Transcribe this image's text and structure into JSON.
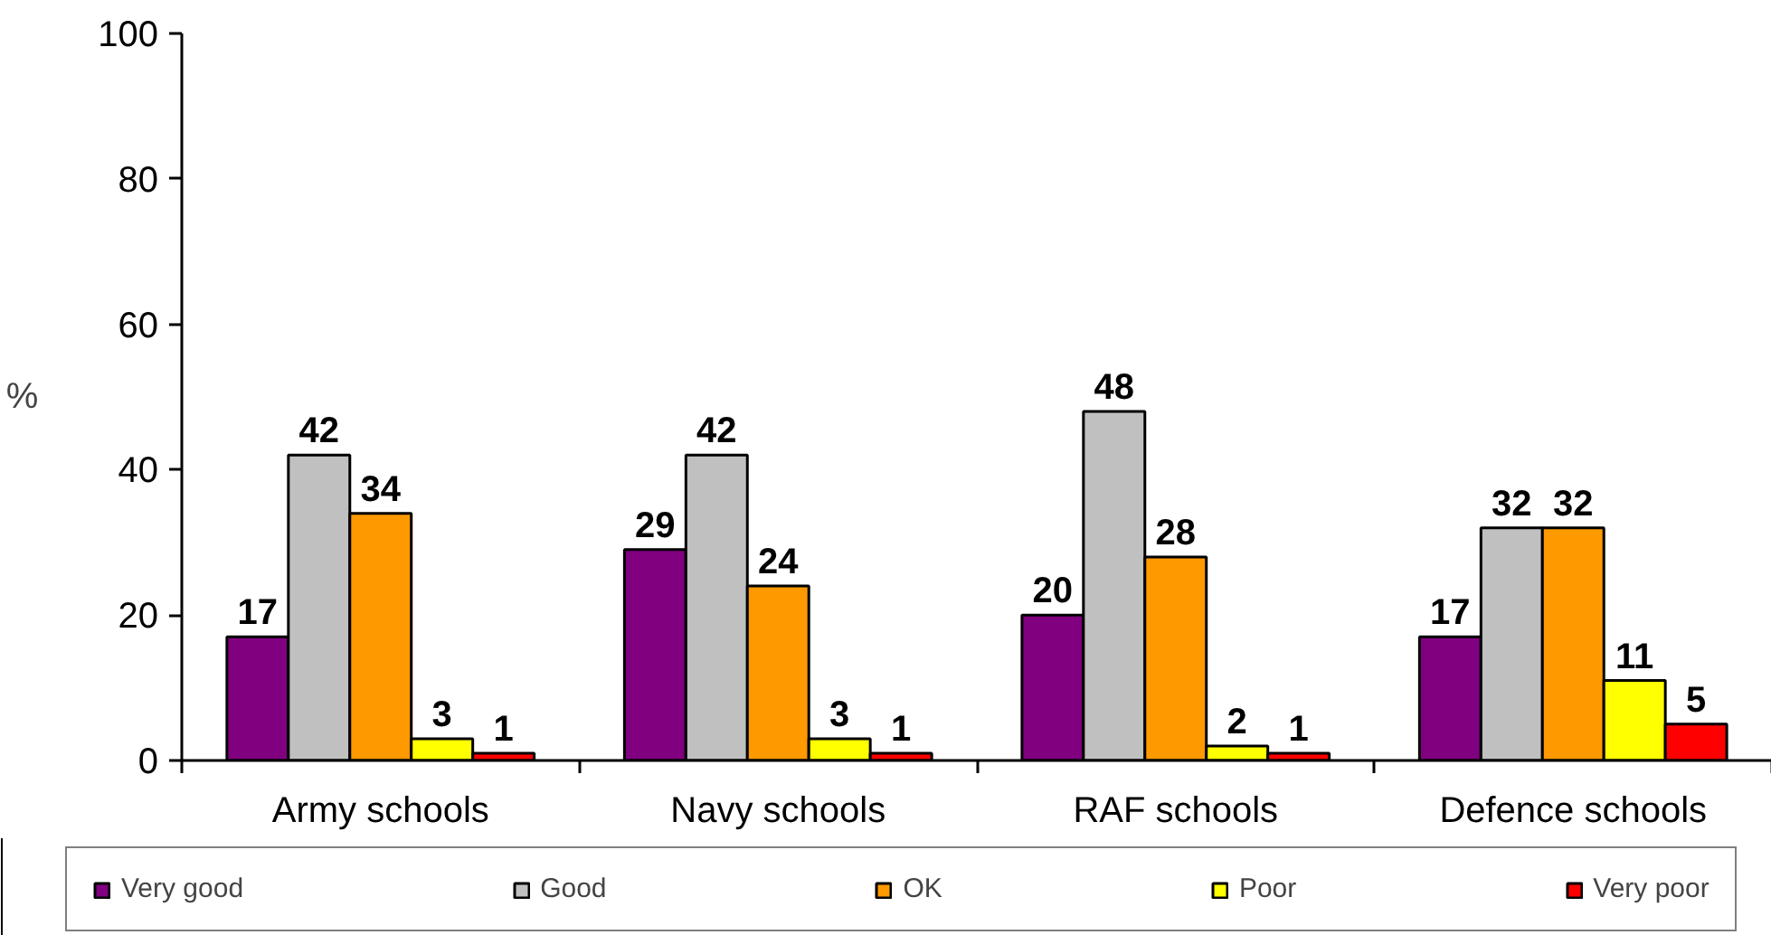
{
  "chart_data": {
    "type": "bar",
    "ylabel": "%",
    "categories": [
      "Army schools",
      "Navy schools",
      "RAF schools",
      "Defence schools"
    ],
    "series": [
      {
        "name": "Very good",
        "color": "#800080",
        "values": [
          17,
          29,
          20,
          17
        ]
      },
      {
        "name": "Good",
        "color": "#c0c0c0",
        "values": [
          42,
          42,
          48,
          32
        ]
      },
      {
        "name": "OK",
        "color": "#ff9900",
        "values": [
          34,
          24,
          28,
          32
        ]
      },
      {
        "name": "Poor",
        "color": "#ffff00",
        "values": [
          3,
          3,
          2,
          11
        ]
      },
      {
        "name": "Very poor",
        "color": "#ff0000",
        "values": [
          1,
          1,
          1,
          5
        ]
      }
    ],
    "ylim": [
      0,
      100
    ],
    "yticks": [
      0,
      20,
      40,
      60,
      80,
      100
    ],
    "data_labels": true,
    "legend": "bottom"
  }
}
